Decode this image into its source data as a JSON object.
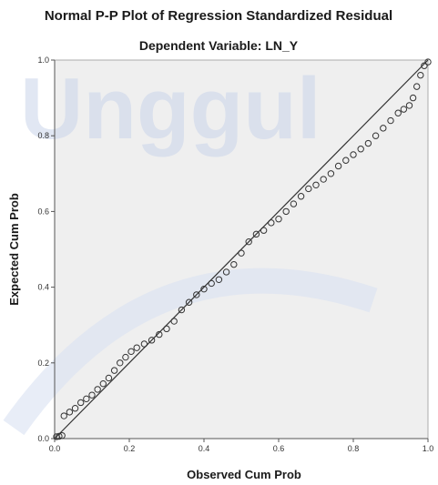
{
  "chart_data": {
    "type": "scatter",
    "title": "Normal P-P Plot of Regression Standardized Residual",
    "subtitle": "Dependent Variable: LN_Y",
    "xlabel": "Observed Cum Prob",
    "ylabel": "Expected Cum Prob",
    "xlim": [
      0,
      1
    ],
    "ylim": [
      0,
      1
    ],
    "xticks": [
      "0.0",
      "0.2",
      "0.4",
      "0.6",
      "0.8",
      "1.0"
    ],
    "yticks": [
      "0.0",
      "0.2",
      "0.4",
      "0.6",
      "0.8",
      "1.0"
    ],
    "grid": false,
    "legend": "none",
    "reference_line": {
      "x": [
        0,
        1
      ],
      "y": [
        0,
        1
      ]
    },
    "series": [
      {
        "points": [
          [
            0.005,
            0.005
          ],
          [
            0.012,
            0.006
          ],
          [
            0.02,
            0.008
          ],
          [
            0.025,
            0.06
          ],
          [
            0.04,
            0.07
          ],
          [
            0.055,
            0.08
          ],
          [
            0.07,
            0.095
          ],
          [
            0.085,
            0.105
          ],
          [
            0.1,
            0.115
          ],
          [
            0.115,
            0.13
          ],
          [
            0.13,
            0.145
          ],
          [
            0.145,
            0.16
          ],
          [
            0.16,
            0.18
          ],
          [
            0.175,
            0.2
          ],
          [
            0.19,
            0.215
          ],
          [
            0.205,
            0.23
          ],
          [
            0.22,
            0.24
          ],
          [
            0.24,
            0.25
          ],
          [
            0.26,
            0.26
          ],
          [
            0.28,
            0.275
          ],
          [
            0.3,
            0.29
          ],
          [
            0.32,
            0.31
          ],
          [
            0.34,
            0.34
          ],
          [
            0.36,
            0.36
          ],
          [
            0.38,
            0.38
          ],
          [
            0.4,
            0.395
          ],
          [
            0.42,
            0.41
          ],
          [
            0.44,
            0.42
          ],
          [
            0.46,
            0.44
          ],
          [
            0.48,
            0.46
          ],
          [
            0.5,
            0.49
          ],
          [
            0.52,
            0.52
          ],
          [
            0.54,
            0.54
          ],
          [
            0.56,
            0.55
          ],
          [
            0.58,
            0.57
          ],
          [
            0.6,
            0.58
          ],
          [
            0.62,
            0.6
          ],
          [
            0.64,
            0.62
          ],
          [
            0.66,
            0.64
          ],
          [
            0.68,
            0.66
          ],
          [
            0.7,
            0.67
          ],
          [
            0.72,
            0.685
          ],
          [
            0.74,
            0.7
          ],
          [
            0.76,
            0.72
          ],
          [
            0.78,
            0.735
          ],
          [
            0.8,
            0.75
          ],
          [
            0.82,
            0.765
          ],
          [
            0.84,
            0.78
          ],
          [
            0.86,
            0.8
          ],
          [
            0.88,
            0.82
          ],
          [
            0.9,
            0.84
          ],
          [
            0.92,
            0.86
          ],
          [
            0.935,
            0.87
          ],
          [
            0.95,
            0.88
          ],
          [
            0.96,
            0.9
          ],
          [
            0.97,
            0.93
          ],
          [
            0.98,
            0.96
          ],
          [
            0.99,
            0.985
          ],
          [
            1.0,
            0.995
          ]
        ]
      }
    ]
  },
  "colors": {
    "plot_background": "#efefef",
    "marker_stroke": "#333333",
    "reference_line": "#333333",
    "axis": "#555555"
  }
}
